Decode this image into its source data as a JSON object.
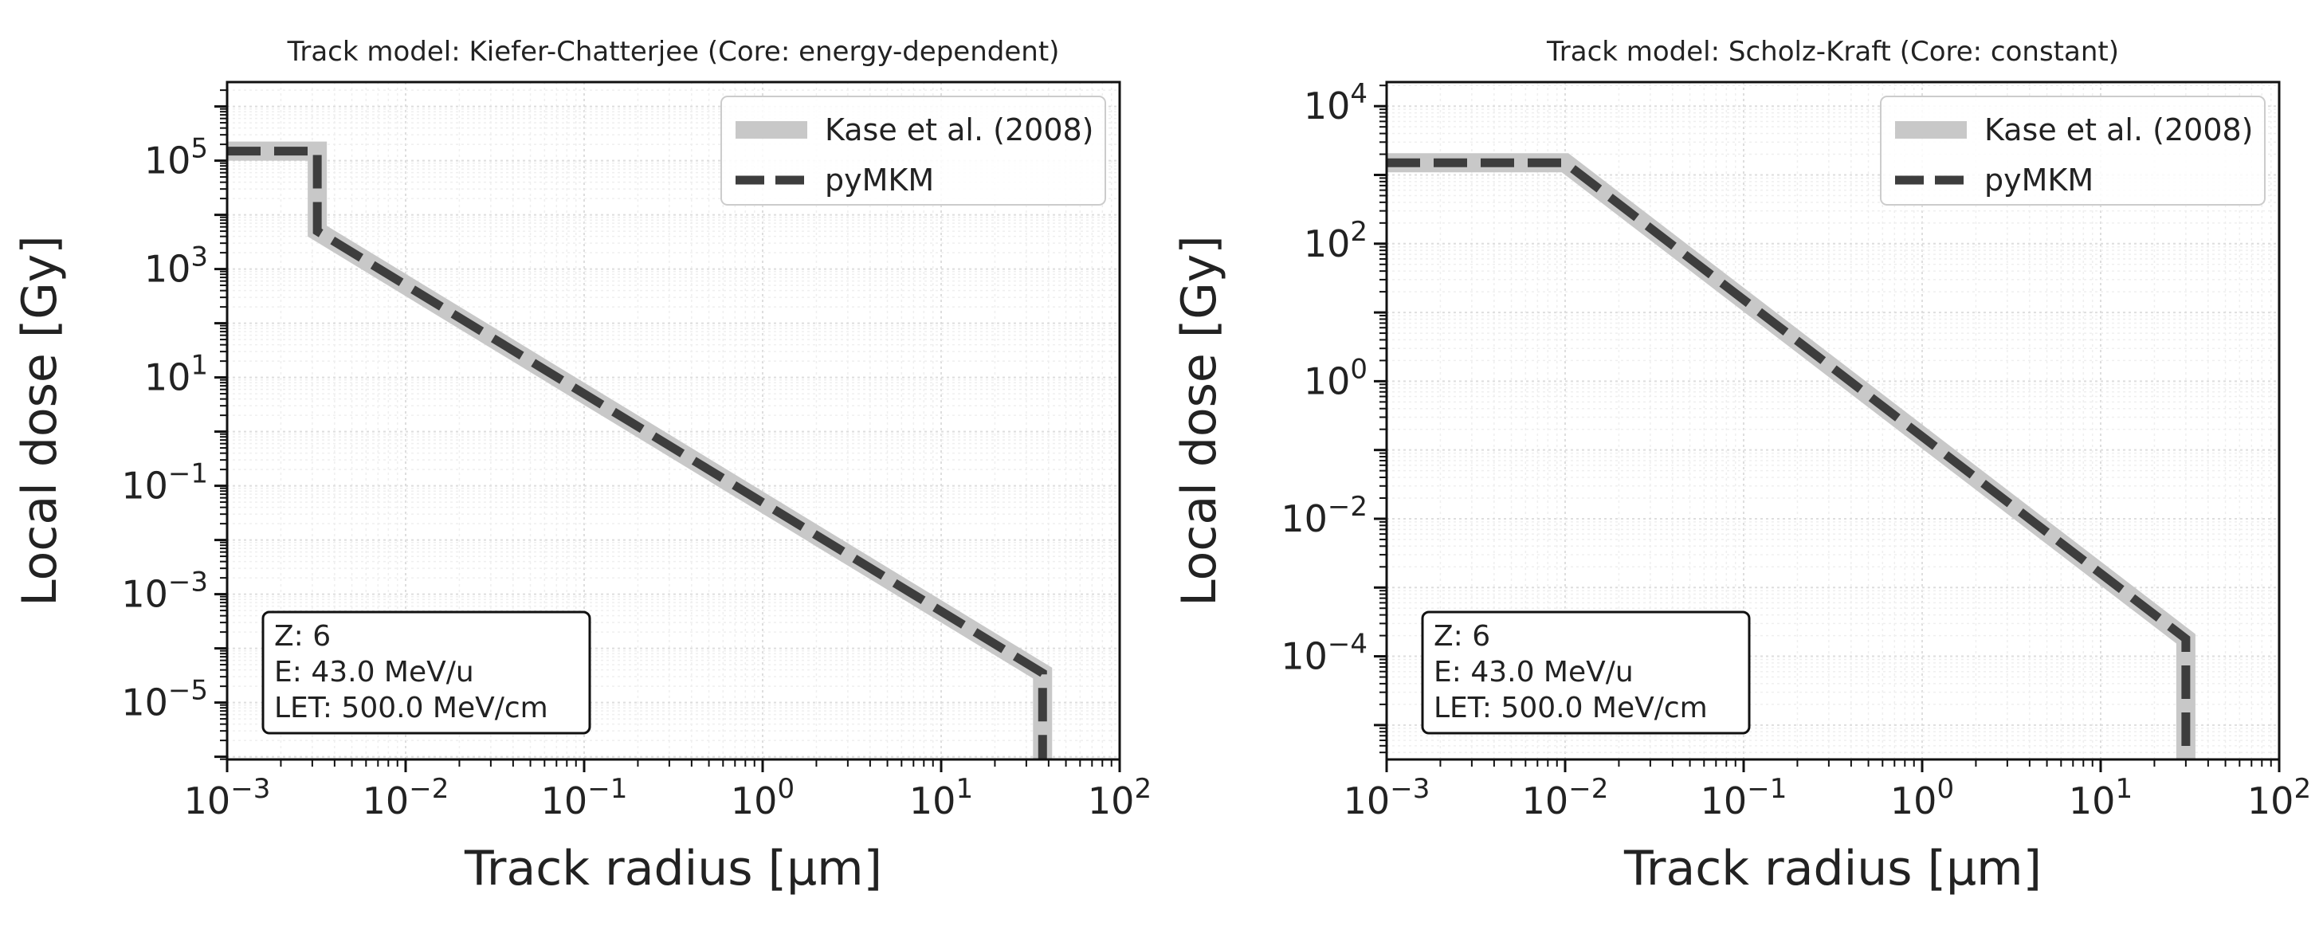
{
  "chart_data": [
    {
      "type": "line",
      "title": "Track model: Kiefer-Chatterjee (Core: energy-dependent)",
      "xlabel": "Track radius [μm]",
      "ylabel": "Local dose [Gy]",
      "xscale": "log",
      "yscale": "log",
      "xlim_log10": [
        -3,
        2
      ],
      "ylim_log10": [
        -6.05,
        6.45
      ],
      "x_ticks": [
        {
          "exp": -3,
          "base": "10",
          "sup": "−3"
        },
        {
          "exp": -2,
          "base": "10",
          "sup": "−2"
        },
        {
          "exp": -1,
          "base": "10",
          "sup": "−1"
        },
        {
          "exp": 0,
          "base": "10",
          "sup": "0"
        },
        {
          "exp": 1,
          "base": "10",
          "sup": "1"
        },
        {
          "exp": 2,
          "base": "10",
          "sup": "2"
        }
      ],
      "y_ticks": [
        {
          "exp": 5,
          "base": "10",
          "sup": "5"
        },
        {
          "exp": 3,
          "base": "10",
          "sup": "3"
        },
        {
          "exp": 1,
          "base": "10",
          "sup": "1"
        },
        {
          "exp": -1,
          "base": "10",
          "sup": "−1"
        },
        {
          "exp": -3,
          "base": "10",
          "sup": "−3"
        },
        {
          "exp": -5,
          "base": "10",
          "sup": "−5"
        }
      ],
      "grid": true,
      "legend_position": "top-right",
      "series": [
        {
          "name": "Kase et al. (2008)",
          "style": "solid",
          "color": "#c8c8c8",
          "points": [
            [
              0.001,
              150000
            ],
            [
              0.0032,
              150000
            ],
            [
              0.0032,
              5000
            ],
            [
              37,
              3.5e-05
            ],
            [
              37,
              9e-07
            ]
          ]
        },
        {
          "name": "pyMKM",
          "style": "dashed",
          "color": "#3d3d3d",
          "points": [
            [
              0.001,
              150000
            ],
            [
              0.0032,
              150000
            ],
            [
              0.0032,
              5000
            ],
            [
              37,
              3.5e-05
            ],
            [
              37,
              9e-07
            ]
          ]
        }
      ],
      "info_box": [
        "Z: 6",
        "E: 43.0 MeV/u",
        "LET: 500.0 MeV/cm"
      ]
    },
    {
      "type": "line",
      "title": "Track model: Scholz-Kraft (Core: constant)",
      "xlabel": "Track radius [μm]",
      "ylabel": "Local dose [Gy]",
      "xscale": "log",
      "yscale": "log",
      "xlim_log10": [
        -3,
        2
      ],
      "ylim_log10": [
        -5.5,
        4.35
      ],
      "x_ticks": [
        {
          "exp": -3,
          "base": "10",
          "sup": "−3"
        },
        {
          "exp": -2,
          "base": "10",
          "sup": "−2"
        },
        {
          "exp": -1,
          "base": "10",
          "sup": "−1"
        },
        {
          "exp": 0,
          "base": "10",
          "sup": "0"
        },
        {
          "exp": 1,
          "base": "10",
          "sup": "1"
        },
        {
          "exp": 2,
          "base": "10",
          "sup": "2"
        }
      ],
      "y_ticks": [
        {
          "exp": 4,
          "base": "10",
          "sup": "4"
        },
        {
          "exp": 2,
          "base": "10",
          "sup": "2"
        },
        {
          "exp": 0,
          "base": "10",
          "sup": "0"
        },
        {
          "exp": -2,
          "base": "10",
          "sup": "−2"
        },
        {
          "exp": -4,
          "base": "10",
          "sup": "−4"
        }
      ],
      "grid": true,
      "legend_position": "top-right",
      "series": [
        {
          "name": "Kase et al. (2008)",
          "style": "solid",
          "color": "#c8c8c8",
          "points": [
            [
              0.001,
              1500
            ],
            [
              0.01,
              1500
            ],
            [
              30,
              0.00018
            ],
            [
              30,
              3e-06
            ]
          ]
        },
        {
          "name": "pyMKM",
          "style": "dashed",
          "color": "#3d3d3d",
          "points": [
            [
              0.001,
              1500
            ],
            [
              0.01,
              1500
            ],
            [
              30,
              0.00018
            ],
            [
              30,
              3e-06
            ]
          ]
        }
      ],
      "info_box": [
        "Z: 6",
        "E: 43.0 MeV/u",
        "LET: 500.0 MeV/cm"
      ]
    }
  ]
}
